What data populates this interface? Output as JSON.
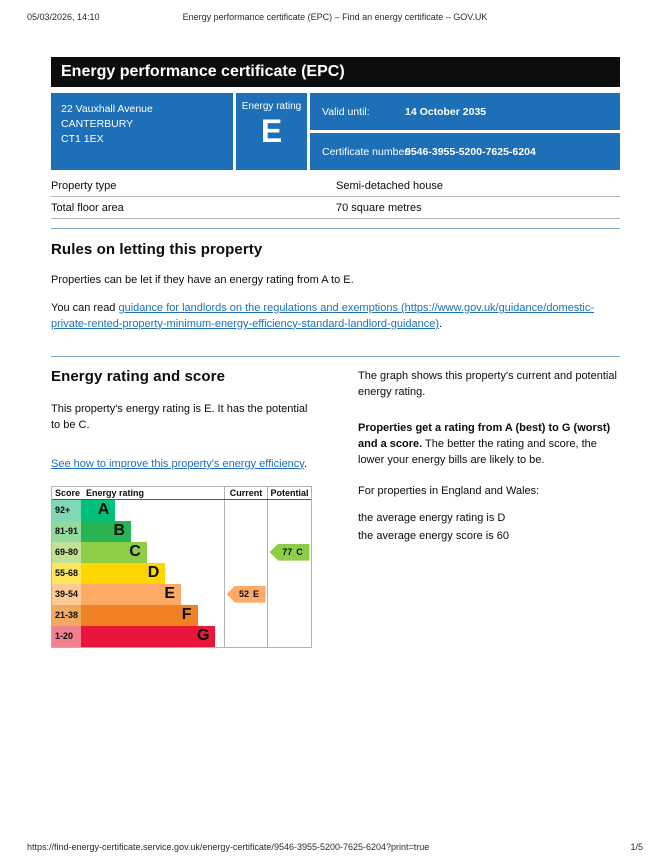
{
  "print_header": {
    "datetime": "05/03/2026, 14:10",
    "title": "Energy performance certificate (EPC) – Find an energy certificate – GOV.UK"
  },
  "banner": {
    "title": "Energy performance certificate (EPC)"
  },
  "summary": {
    "address_lines": [
      "22 Vauxhall Avenue",
      "CANTERBURY",
      "CT1 1EX"
    ],
    "energy_rating_label": "Energy rating",
    "energy_rating": "E",
    "valid_until_label": "Valid until:",
    "valid_until_value": "14 October 2035",
    "certificate_number_label": "Certificate number:",
    "certificate_number_value": "9546-3955-5200-7625-6204",
    "box_color": "#1d70b8"
  },
  "property_table": {
    "rows": [
      {
        "label": "Property type",
        "value": "Semi-detached house"
      },
      {
        "label": "Total floor area",
        "value": "70 square metres"
      }
    ]
  },
  "rules_section": {
    "heading": "Rules on letting this property",
    "paragraph1": "Properties can be let if they have an energy rating from A to E.",
    "paragraph2_prefix": "You can read ",
    "paragraph2_link": "guidance for landlords on the regulations and exemptions (https://www.gov.uk/guidance/domestic-private-rented-property-minimum-energy-efficiency-standard-landlord-guidance)",
    "paragraph2_suffix": "."
  },
  "rating_section": {
    "heading": "Energy rating and score",
    "paragraph1": "This property's energy rating is E. It has the potential to be C.",
    "improve_link": "See how to improve this property's energy efficiency",
    "improve_suffix": ".",
    "right_paragraph1": "The graph shows this property's current and potential energy rating.",
    "right_paragraph2_bold": "Properties get a rating from A (best) to G (worst) and a score.",
    "right_paragraph2_rest": " The better the rating and score, the lower your energy bills are likely to be.",
    "right_paragraph3": "For properties in England and Wales:",
    "average_line1": "the average energy rating is D",
    "average_line2": "the average energy score is 60"
  },
  "chart_data": {
    "type": "bar",
    "subtype": "epc-rating-scale",
    "headers": {
      "score": "Score",
      "rating": "Energy rating",
      "current": "Current",
      "potential": "Potential"
    },
    "bands": [
      {
        "score_range": "92+",
        "letter": "A",
        "color": "#00c07a",
        "tint": "#7fd9b4",
        "width_pct": 24
      },
      {
        "score_range": "81-91",
        "letter": "B",
        "color": "#2ab352",
        "tint": "#93d9a0",
        "width_pct": 35
      },
      {
        "score_range": "69-80",
        "letter": "C",
        "color": "#8dce46",
        "tint": "#bfe296",
        "width_pct": 46
      },
      {
        "score_range": "55-68",
        "letter": "D",
        "color": "#ffd500",
        "tint": "#ffe55e",
        "width_pct": 59
      },
      {
        "score_range": "39-54",
        "letter": "E",
        "color": "#fcaa65",
        "tint": "#fcc993",
        "width_pct": 70
      },
      {
        "score_range": "21-38",
        "letter": "F",
        "color": "#ef8023",
        "tint": "#f4a963",
        "width_pct": 81.5
      },
      {
        "score_range": "1-20",
        "letter": "G",
        "color": "#e9153b",
        "tint": "#f2808f",
        "width_pct": 94
      }
    ],
    "current": {
      "score": "52",
      "letter": "E",
      "band_index": 4,
      "color": "#fcaa65"
    },
    "potential": {
      "score": "77",
      "letter": "C",
      "band_index": 2,
      "color": "#8dce46"
    }
  },
  "print_footer": {
    "url": "https://find-energy-certificate.service.gov.uk/energy-certificate/9546-3955-5200-7625-6204?print=true",
    "page": "1/5"
  }
}
